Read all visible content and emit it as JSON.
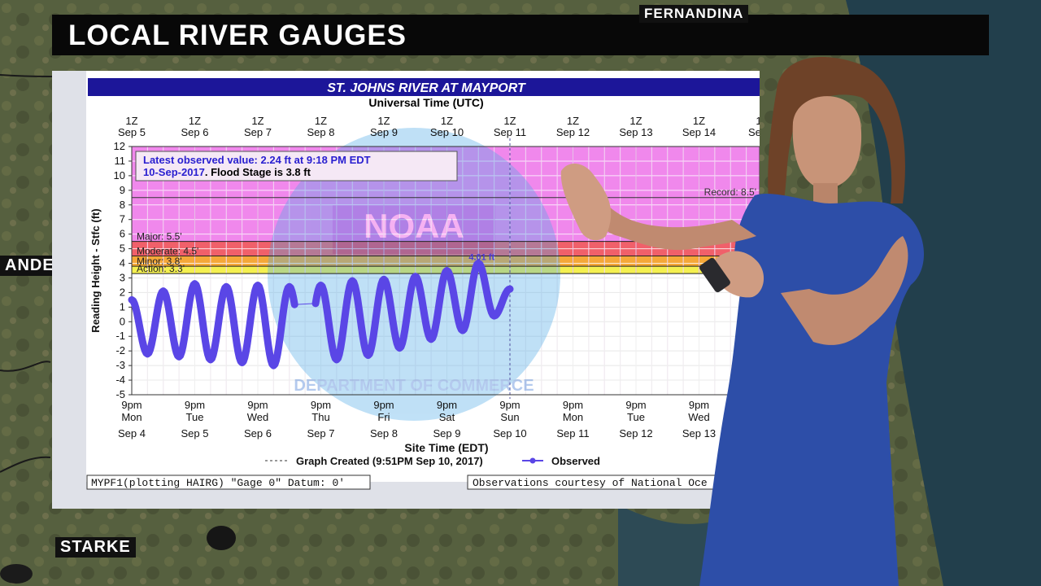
{
  "banner": {
    "title": "LOCAL RIVER GAUGES"
  },
  "map_labels": {
    "north": "FERNANDINA",
    "west": "ANDERS",
    "south": "STARKE"
  },
  "chart_data": {
    "type": "line",
    "title": "ST. JOHNS RIVER AT MAYPORT",
    "top_axis_label": "Universal Time (UTC)",
    "top_ticks": [
      {
        "hour": "1Z",
        "date": "Sep 5"
      },
      {
        "hour": "1Z",
        "date": "Sep 6"
      },
      {
        "hour": "1Z",
        "date": "Sep 7"
      },
      {
        "hour": "1Z",
        "date": "Sep 8"
      },
      {
        "hour": "1Z",
        "date": "Sep 9"
      },
      {
        "hour": "1Z",
        "date": "Sep 10"
      },
      {
        "hour": "1Z",
        "date": "Sep 11"
      },
      {
        "hour": "1Z",
        "date": "Sep 12"
      },
      {
        "hour": "1Z",
        "date": "Sep 13"
      },
      {
        "hour": "1Z",
        "date": "Sep 14"
      },
      {
        "hour": "1Z",
        "date": "Sep 1"
      }
    ],
    "xlabel": "Site Time (EDT)",
    "bottom_ticks": [
      {
        "time": "9pm",
        "day": "Mon",
        "date": "Sep 4"
      },
      {
        "time": "9pm",
        "day": "Tue",
        "date": "Sep 5"
      },
      {
        "time": "9pm",
        "day": "Wed",
        "date": "Sep 6"
      },
      {
        "time": "9pm",
        "day": "Thu",
        "date": "Sep 7"
      },
      {
        "time": "9pm",
        "day": "Fri",
        "date": "Sep 8"
      },
      {
        "time": "9pm",
        "day": "Sat",
        "date": "Sep 9"
      },
      {
        "time": "9pm",
        "day": "Sun",
        "date": "Sep 10"
      },
      {
        "time": "9pm",
        "day": "Mon",
        "date": "Sep 11"
      },
      {
        "time": "9pm",
        "day": "Tue",
        "date": "Sep 12"
      },
      {
        "time": "9pm",
        "day": "Wed",
        "date": "Sep 13"
      }
    ],
    "ylabel": "Reading Height - Stfc (ft)",
    "ylim": [
      -5,
      12
    ],
    "xlim_days": [
      0,
      10
    ],
    "y_ticks": [
      12,
      11,
      10,
      9,
      8,
      7,
      6,
      5,
      4,
      3,
      2,
      1,
      0,
      -1,
      -2,
      -3,
      -4,
      -5
    ],
    "flood_categories": [
      {
        "name": "Major",
        "label": "Major: 5.5'",
        "from": 5.5,
        "to": 12,
        "color": "#f088ec"
      },
      {
        "name": "Moderate",
        "label": "Moderate: 4.5'",
        "from": 4.5,
        "to": 5.5,
        "color": "#f0606a"
      },
      {
        "name": "Minor",
        "label": "Minor: 3.8'",
        "from": 3.8,
        "to": 4.5,
        "color": "#f5a838"
      },
      {
        "name": "Action",
        "label": "Action: 3.3'",
        "from": 3.3,
        "to": 3.8,
        "color": "#f4f050"
      }
    ],
    "record": {
      "label": "Record: 8.5'",
      "value": 8.5
    },
    "latest_box": {
      "line1": "Latest observed value: 2.24 ft at 9:18 PM EDT",
      "line2a": "10-Sep-2017",
      "line2b": ". Flood Stage is 3.8 ft"
    },
    "peak_label": "4.01 ft",
    "current_day": 6,
    "watermark": {
      "logo": "NOAA",
      "org": "DEPARTMENT OF COMMERCE"
    },
    "legend": {
      "created": "Graph Created (9:51PM Sep 10, 2017)",
      "observed": "Observed"
    },
    "footer_left": "MYPF1(plotting HAIRG) \"Gage 0\" Datum: 0'",
    "footer_right": "Observations courtesy of National Oce",
    "series": [
      {
        "name": "Observed",
        "color": "#5a46e6",
        "x": [
          0,
          0.25,
          0.5,
          0.75,
          1,
          1.25,
          1.5,
          1.75,
          2,
          2.25,
          2.5,
          2.75,
          3,
          3.25,
          3.5,
          3.75,
          4,
          4.25,
          4.5,
          4.75,
          5,
          5.25,
          5.5,
          5.75,
          6
        ],
        "y": [
          1.5,
          -2.2,
          2.1,
          -2.4,
          2.6,
          -2.6,
          2.4,
          -2.8,
          2.5,
          -3.0,
          2.4,
          -2.5,
          2.5,
          -2.6,
          2.8,
          -2.3,
          2.9,
          -1.8,
          3.1,
          -1.2,
          3.5,
          -0.6,
          4.01,
          0.4,
          2.24
        ]
      }
    ],
    "gap": {
      "from": 2.6,
      "to": 2.9
    }
  }
}
